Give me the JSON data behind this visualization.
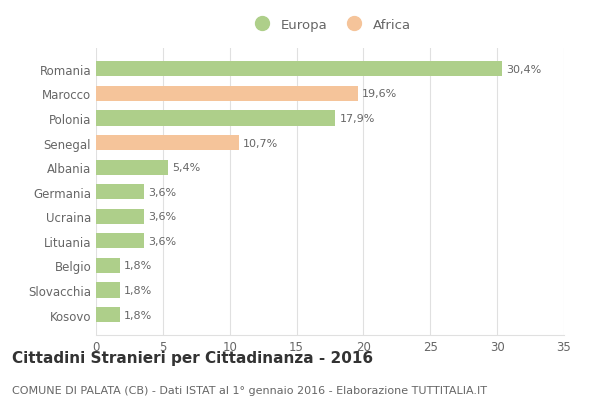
{
  "categories": [
    "Romania",
    "Marocco",
    "Polonia",
    "Senegal",
    "Albania",
    "Germania",
    "Ucraina",
    "Lituania",
    "Belgio",
    "Slovacchia",
    "Kosovo"
  ],
  "values": [
    30.4,
    19.6,
    17.9,
    10.7,
    5.4,
    3.6,
    3.6,
    3.6,
    1.8,
    1.8,
    1.8
  ],
  "labels": [
    "30,4%",
    "19,6%",
    "17,9%",
    "10,7%",
    "5,4%",
    "3,6%",
    "3,6%",
    "3,6%",
    "1,8%",
    "1,8%",
    "1,8%"
  ],
  "continents": [
    "Europa",
    "Africa",
    "Europa",
    "Africa",
    "Europa",
    "Europa",
    "Europa",
    "Europa",
    "Europa",
    "Europa",
    "Europa"
  ],
  "color_europa": "#aecf8a",
  "color_africa": "#f5c49a",
  "title": "Cittadini Stranieri per Cittadinanza - 2016",
  "subtitle": "COMUNE DI PALATA (CB) - Dati ISTAT al 1° gennaio 2016 - Elaborazione TUTTITALIA.IT",
  "xlim": [
    0,
    35
  ],
  "xticks": [
    0,
    5,
    10,
    15,
    20,
    25,
    30,
    35
  ],
  "background_color": "#ffffff",
  "grid_color": "#e0e0e0",
  "legend_europa": "Europa",
  "legend_africa": "Africa",
  "title_fontsize": 11,
  "subtitle_fontsize": 8,
  "label_fontsize": 8,
  "tick_fontsize": 8.5
}
